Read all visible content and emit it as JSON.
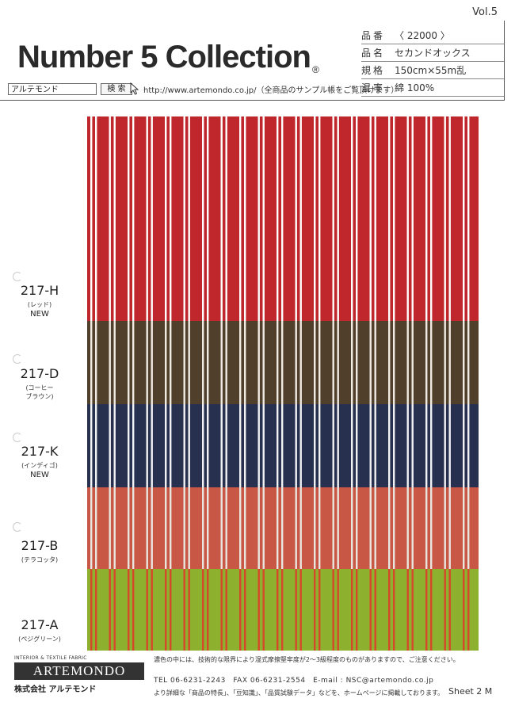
{
  "header": {
    "volume": "Vol.5",
    "collection_title": "Number 5 Collection",
    "registered_mark": "®"
  },
  "specs": [
    {
      "label": "品番",
      "value": "〈 22000 〉"
    },
    {
      "label": "品名",
      "value": "セカンドオックス"
    },
    {
      "label": "規格",
      "value": "150cm×55m乱"
    },
    {
      "label": "混率",
      "value": "綿 100%"
    }
  ],
  "search": {
    "box_text": "アルテモンド",
    "button_label": "検 索",
    "url_note": "http://www.artemondo.co.jp/（全商品のサンプル帳をご覧頂けます）"
  },
  "samples": [
    {
      "code": "217-H",
      "color": "(レッド)",
      "badge": "NEW",
      "base_color": "#c0272d",
      "stripe_color": "#ffffff"
    },
    {
      "code": "217-D",
      "color": "(コーヒー\nブラウン)",
      "badge": "",
      "base_color": "#4f3f2b",
      "stripe_color": "#f0ece4"
    },
    {
      "code": "217-K",
      "color": "(インディゴ)",
      "badge": "NEW",
      "base_color": "#27304f",
      "stripe_color": "#f2f2f4"
    },
    {
      "code": "217-B",
      "color": "(テラコッタ)",
      "badge": "",
      "base_color": "#c95745",
      "stripe_color": "#e9e6e0"
    },
    {
      "code": "217-A",
      "color": "(ペジグリーン)",
      "badge": "",
      "base_color": "#8db02f",
      "stripe_color": "#d6482a"
    }
  ],
  "footer": {
    "brand_tagline": "INTERIOR & TEXTILE FABRIC",
    "brand_logo": "ARTEMONDO",
    "company_name": "株式会社 アルテモンド",
    "note": "濃色の中には、技術的な限界により湿式摩擦堅牢度が2～3級程度のものがありますので、ご注意ください。",
    "contact": "TEL 06-6231-2243　FAX 06-6231-2554　E-mail : NSC@artemondo.co.jp",
    "more_info": "より詳細な「商品の特長」、「豆知識」、「品質試験データ」などを、ホームページに掲載しております。",
    "sheet": "Sheet 2 M"
  }
}
